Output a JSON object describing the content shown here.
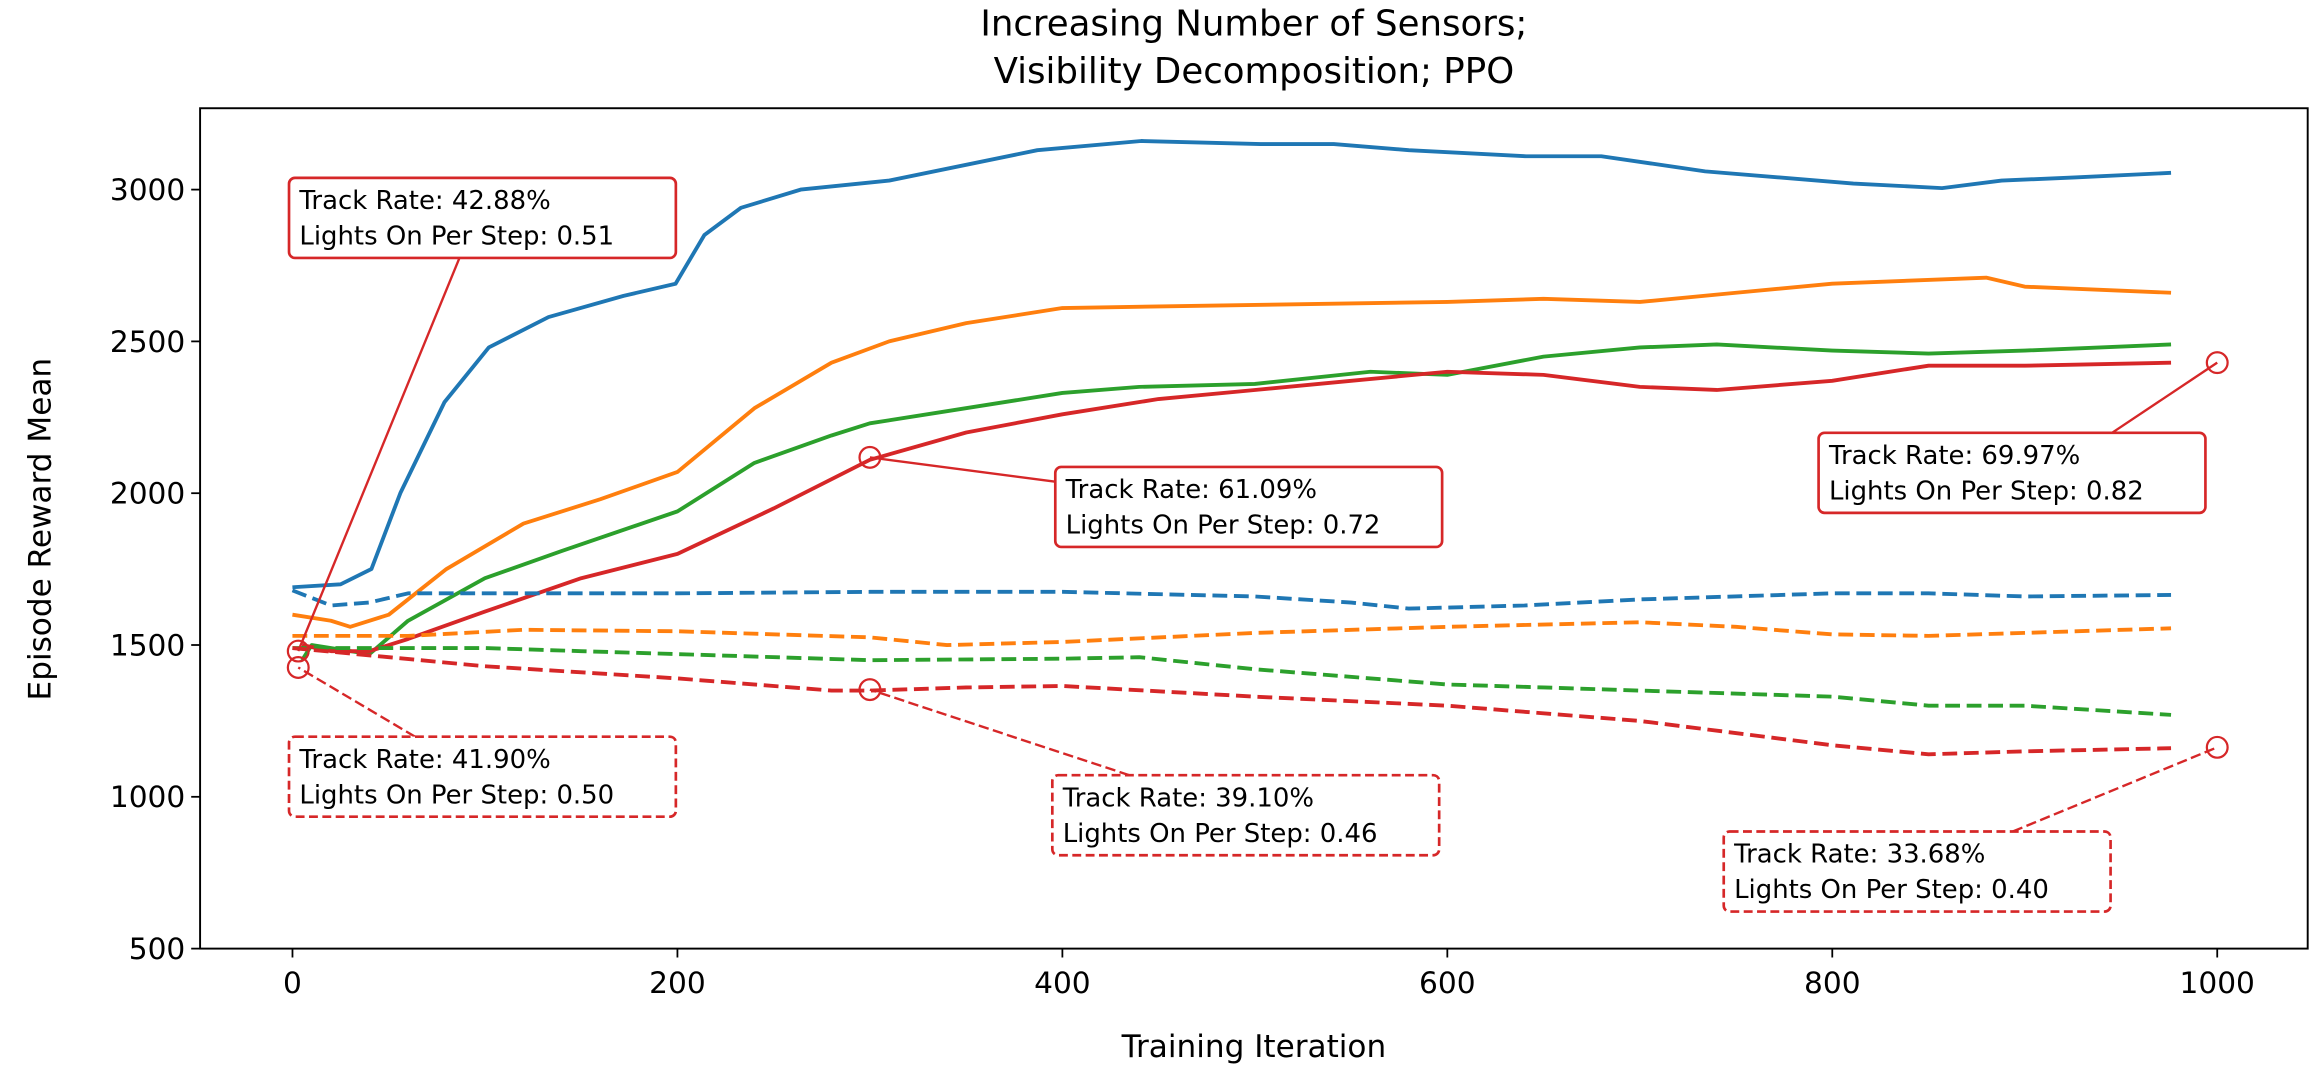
{
  "chart_data": {
    "type": "line",
    "title": "Increasing Number of Sensors;\nVisibility Decomposition; PPO",
    "title_lines": [
      "Increasing Number of Sensors;",
      "Visibility Decomposition; PPO"
    ],
    "xlabel": "Training Iteration",
    "ylabel": "Episode Reward Mean",
    "xlim": [
      -48,
      1047
    ],
    "ylim": [
      500,
      3268
    ],
    "xticks": [
      0,
      200,
      400,
      600,
      800,
      1000
    ],
    "yticks": [
      500,
      1000,
      1500,
      2000,
      2500,
      3000
    ],
    "grid": false,
    "legend": "none",
    "colors": [
      "#1f77b4",
      "#ff7f0e",
      "#2ca02c",
      "#d62728"
    ],
    "series": [
      {
        "color": "#1f77b4",
        "style": "solid",
        "x": [
          0,
          25,
          41,
          56,
          79,
          102,
          133,
          172,
          199,
          214,
          233,
          264,
          310,
          387,
          441,
          503,
          541,
          580,
          641,
          680,
          734,
          811,
          857,
          888,
          926,
          976
        ],
        "y": [
          1690,
          1700,
          1750,
          2000,
          2300,
          2480,
          2580,
          2650,
          2690,
          2850,
          2940,
          3000,
          3030,
          3130,
          3160,
          3150,
          3150,
          3130,
          3110,
          3110,
          3060,
          3020,
          3005,
          3030,
          3040,
          3055
        ]
      },
      {
        "color": "#ff7f0e",
        "style": "solid",
        "x": [
          0,
          20,
          30,
          50,
          80,
          120,
          160,
          200,
          240,
          280,
          310,
          350,
          400,
          500,
          600,
          650,
          700,
          750,
          800,
          880,
          900,
          976
        ],
        "y": [
          1600,
          1580,
          1560,
          1600,
          1750,
          1900,
          1980,
          2070,
          2280,
          2430,
          2500,
          2560,
          2610,
          2620,
          2630,
          2640,
          2630,
          2660,
          2690,
          2710,
          2680,
          2660
        ]
      },
      {
        "color": "#2ca02c",
        "style": "solid",
        "x": [
          5,
          10,
          40,
          60,
          100,
          140,
          200,
          240,
          280,
          300,
          340,
          400,
          440,
          500,
          560,
          600,
          650,
          700,
          740,
          800,
          850,
          900,
          976
        ],
        "y": [
          1450,
          1500,
          1470,
          1580,
          1720,
          1810,
          1940,
          2100,
          2190,
          2230,
          2270,
          2330,
          2350,
          2360,
          2400,
          2390,
          2450,
          2480,
          2490,
          2470,
          2460,
          2470,
          2490
        ]
      },
      {
        "color": "#d62728",
        "style": "solid",
        "x": [
          5,
          20,
          40,
          60,
          100,
          150,
          200,
          250,
          300,
          350,
          400,
          450,
          500,
          550,
          600,
          650,
          700,
          740,
          800,
          850,
          900,
          976
        ],
        "y": [
          1500,
          1480,
          1480,
          1520,
          1610,
          1720,
          1800,
          1950,
          2110,
          2200,
          2260,
          2310,
          2340,
          2370,
          2400,
          2390,
          2350,
          2340,
          2370,
          2420,
          2420,
          2430
        ]
      },
      {
        "color": "#1f77b4",
        "style": "dashed",
        "x": [
          0,
          20,
          40,
          60,
          200,
          300,
          400,
          500,
          550,
          580,
          640,
          700,
          800,
          850,
          900,
          976
        ],
        "y": [
          1680,
          1630,
          1640,
          1670,
          1670,
          1675,
          1675,
          1660,
          1640,
          1620,
          1630,
          1650,
          1670,
          1670,
          1660,
          1665
        ]
      },
      {
        "color": "#ff7f0e",
        "style": "dashed",
        "x": [
          0,
          60,
          120,
          200,
          300,
          340,
          400,
          500,
          600,
          700,
          750,
          800,
          850,
          976
        ],
        "y": [
          1530,
          1530,
          1550,
          1545,
          1525,
          1500,
          1510,
          1540,
          1560,
          1575,
          1560,
          1535,
          1530,
          1555
        ]
      },
      {
        "color": "#2ca02c",
        "style": "dashed",
        "x": [
          0,
          100,
          150,
          200,
          300,
          400,
          440,
          500,
          600,
          650,
          700,
          800,
          850,
          900,
          976
        ],
        "y": [
          1490,
          1490,
          1480,
          1470,
          1450,
          1455,
          1460,
          1420,
          1370,
          1360,
          1350,
          1330,
          1300,
          1300,
          1270
        ]
      },
      {
        "color": "#d62728",
        "style": "dashed",
        "x": [
          0,
          50,
          100,
          200,
          280,
          300,
          350,
          400,
          500,
          600,
          700,
          800,
          850,
          900,
          976
        ],
        "y": [
          1490,
          1460,
          1430,
          1390,
          1350,
          1350,
          1360,
          1365,
          1330,
          1300,
          1250,
          1170,
          1140,
          1150,
          1160
        ]
      }
    ],
    "annotations": [
      {
        "lines": [
          "Track Rate: 42.88%",
          "Lights On Per Step: 0.51"
        ],
        "point": [
          3,
          1480
        ],
        "style": "solid",
        "color": "#d62728"
      },
      {
        "lines": [
          "Track Rate: 41.90%",
          "Lights On Per Step: 0.50"
        ],
        "point": [
          3,
          1426
        ],
        "style": "dashed",
        "color": "#d62728"
      },
      {
        "lines": [
          "Track Rate: 61.09%",
          "Lights On Per Step: 0.72"
        ],
        "point": [
          300,
          2118
        ],
        "style": "solid",
        "color": "#d62728"
      },
      {
        "lines": [
          "Track Rate: 39.10%",
          "Lights On Per Step: 0.46"
        ],
        "point": [
          300,
          1353
        ],
        "style": "dashed",
        "color": "#d62728"
      },
      {
        "lines": [
          "Track Rate: 69.97%",
          "Lights On Per Step: 0.82"
        ],
        "point": [
          1000,
          2430
        ],
        "style": "solid",
        "color": "#d62728"
      },
      {
        "lines": [
          "Track Rate: 33.68%",
          "Lights On Per Step: 0.40"
        ],
        "point": [
          1000,
          1163
        ],
        "style": "dashed",
        "color": "#d62728"
      }
    ]
  }
}
